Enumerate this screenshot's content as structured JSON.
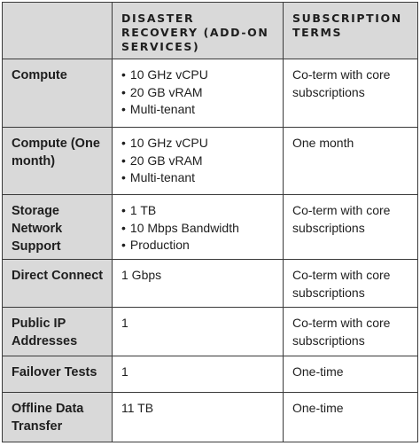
{
  "header": {
    "corner": "",
    "col2": "DISASTER RECOVERY (ADD-ON SERVICES)",
    "col3": "SUBSCRIPTION TERMS"
  },
  "rows": [
    {
      "name": "Compute",
      "items": [
        "10 GHz vCPU",
        "20 GB vRAM",
        "Multi-tenant"
      ],
      "terms": "Co-term with core subscriptions"
    },
    {
      "name": "Compute (One month)",
      "items": [
        "10 GHz vCPU",
        "20 GB vRAM",
        "Multi-tenant"
      ],
      "terms": "One month"
    },
    {
      "name": "Storage Network Support",
      "items": [
        "1 TB",
        "10 Mbps Bandwidth",
        "Production"
      ],
      "terms": "Co-term with core subscriptions"
    },
    {
      "name": "Direct Connect",
      "value": "1 Gbps",
      "terms": "Co-term with core subscriptions"
    },
    {
      "name": "Public IP Addresses",
      "value": "1",
      "terms": "Co-term with core subscriptions"
    },
    {
      "name": "Failover Tests",
      "value": "1",
      "terms": "One-time"
    },
    {
      "name": "Offline Data Transfer",
      "value": "11 TB",
      "terms": "One-time"
    }
  ]
}
